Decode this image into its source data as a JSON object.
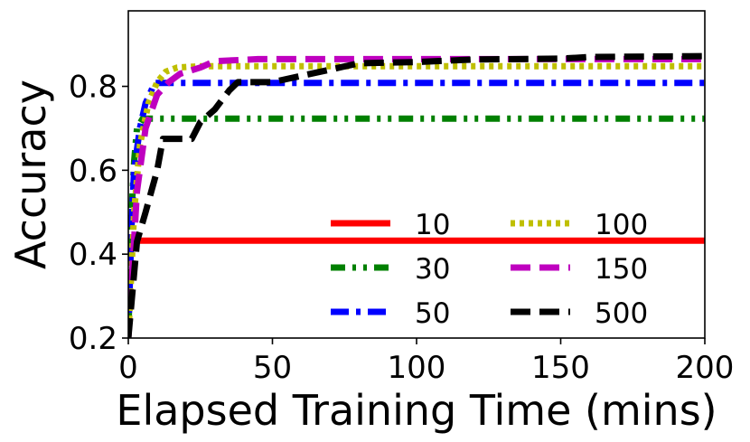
{
  "chart_data": {
    "type": "line",
    "xlabel": "Elapsed Training Time (mins)",
    "ylabel": "Accuracy",
    "xlim": [
      0,
      200
    ],
    "ylim": [
      0.2,
      0.98
    ],
    "xticks": [
      0,
      50,
      100,
      150,
      200
    ],
    "yticks": [
      0.2,
      0.4,
      0.6,
      0.8
    ],
    "xtick_labels": [
      "0",
      "50",
      "100",
      "150",
      "200"
    ],
    "ytick_labels": [
      "0.2",
      "0.4",
      "0.6",
      "0.8"
    ],
    "grid": false,
    "legend": {
      "placement": "lower-right",
      "columns": 2
    },
    "series": [
      {
        "name": "10",
        "color": "#ff0000",
        "style": "solid",
        "x": [
          0,
          200
        ],
        "y": [
          0.432,
          0.432
        ]
      },
      {
        "name": "30",
        "color": "#008000",
        "style": "dashdotdot",
        "x": [
          0,
          1,
          2,
          3,
          5,
          200
        ],
        "y": [
          0.2,
          0.48,
          0.62,
          0.7,
          0.723,
          0.723
        ]
      },
      {
        "name": "50",
        "color": "#0000ff",
        "style": "dashdot",
        "x": [
          0,
          1,
          2,
          4,
          6,
          8,
          9,
          200
        ],
        "y": [
          0.2,
          0.45,
          0.6,
          0.7,
          0.76,
          0.79,
          0.808,
          0.808
        ]
      },
      {
        "name": "100",
        "color": "#bfbf00",
        "style": "dotted",
        "x": [
          0,
          2,
          4,
          7,
          10,
          13,
          17,
          25,
          200
        ],
        "y": [
          0.2,
          0.5,
          0.66,
          0.76,
          0.81,
          0.835,
          0.845,
          0.848,
          0.848
        ]
      },
      {
        "name": "150",
        "color": "#bf00bf",
        "style": "dashed",
        "x": [
          0,
          3,
          6,
          10,
          14,
          18,
          25,
          30,
          45,
          200
        ],
        "y": [
          0.2,
          0.55,
          0.7,
          0.78,
          0.81,
          0.83,
          0.845,
          0.86,
          0.865,
          0.865
        ]
      },
      {
        "name": "500",
        "color": "#000000",
        "style": "dashed",
        "x": [
          0,
          3,
          6,
          8,
          10,
          12,
          22,
          25,
          30,
          35,
          38,
          50,
          60,
          70,
          80,
          100,
          120,
          150,
          160,
          200
        ],
        "y": [
          0.2,
          0.43,
          0.5,
          0.55,
          0.6,
          0.675,
          0.675,
          0.715,
          0.745,
          0.79,
          0.81,
          0.81,
          0.825,
          0.84,
          0.855,
          0.858,
          0.864,
          0.866,
          0.87,
          0.872
        ]
      }
    ]
  }
}
